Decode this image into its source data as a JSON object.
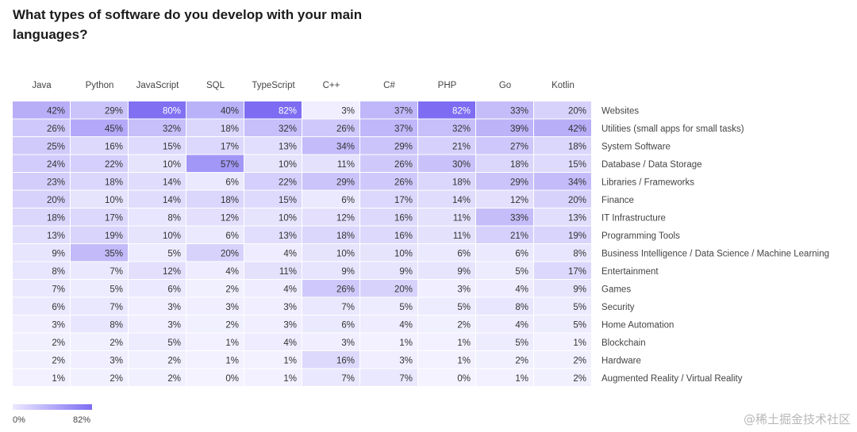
{
  "colors": {
    "low": "#f4f3ff",
    "high": "#7e6df2",
    "legend_low": "#ece9ff"
  },
  "legend": {
    "min": "0%",
    "max": "82%"
  },
  "watermark": "@稀土掘金技术社区",
  "chart_data": {
    "type": "heatmap",
    "title": "What types of software do you develop with your main languages?",
    "columns": [
      "Java",
      "Python",
      "JavaScript",
      "SQL",
      "TypeScript",
      "C++",
      "C#",
      "PHP",
      "Go",
      "Kotlin"
    ],
    "rows": [
      "Websites",
      "Utilities (small apps for small tasks)",
      "System Software",
      "Database / Data Storage",
      "Libraries / Frameworks",
      "Finance",
      "IT Infrastructure",
      "Programming Tools",
      "Business Intelligence / Data Science / Machine Learning",
      "Entertainment",
      "Games",
      "Security",
      "Home Automation",
      "Blockchain",
      "Hardware",
      "Augmented Reality / Virtual Reality"
    ],
    "values": [
      [
        42,
        29,
        80,
        40,
        82,
        3,
        37,
        82,
        33,
        20
      ],
      [
        26,
        45,
        32,
        18,
        32,
        26,
        37,
        32,
        39,
        42
      ],
      [
        25,
        16,
        15,
        17,
        13,
        34,
        29,
        21,
        27,
        18
      ],
      [
        24,
        22,
        10,
        57,
        10,
        11,
        26,
        30,
        18,
        15
      ],
      [
        23,
        18,
        14,
        6,
        22,
        29,
        26,
        18,
        29,
        34
      ],
      [
        20,
        10,
        14,
        18,
        15,
        6,
        17,
        14,
        12,
        20
      ],
      [
        18,
        17,
        8,
        12,
        10,
        12,
        16,
        11,
        33,
        13
      ],
      [
        13,
        19,
        10,
        6,
        13,
        18,
        16,
        11,
        21,
        19
      ],
      [
        9,
        35,
        5,
        20,
        4,
        10,
        10,
        6,
        6,
        8
      ],
      [
        8,
        7,
        12,
        4,
        11,
        9,
        9,
        9,
        5,
        17
      ],
      [
        7,
        5,
        6,
        2,
        4,
        26,
        20,
        3,
        4,
        9
      ],
      [
        6,
        7,
        3,
        3,
        3,
        7,
        5,
        5,
        8,
        5
      ],
      [
        3,
        8,
        3,
        2,
        3,
        6,
        4,
        2,
        4,
        5
      ],
      [
        2,
        2,
        5,
        1,
        4,
        3,
        1,
        1,
        5,
        1
      ],
      [
        2,
        3,
        2,
        1,
        1,
        16,
        3,
        1,
        2,
        2
      ],
      [
        1,
        2,
        2,
        0,
        1,
        7,
        7,
        0,
        1,
        2
      ]
    ],
    "value_suffix": "%",
    "scale": [
      0,
      82
    ]
  }
}
